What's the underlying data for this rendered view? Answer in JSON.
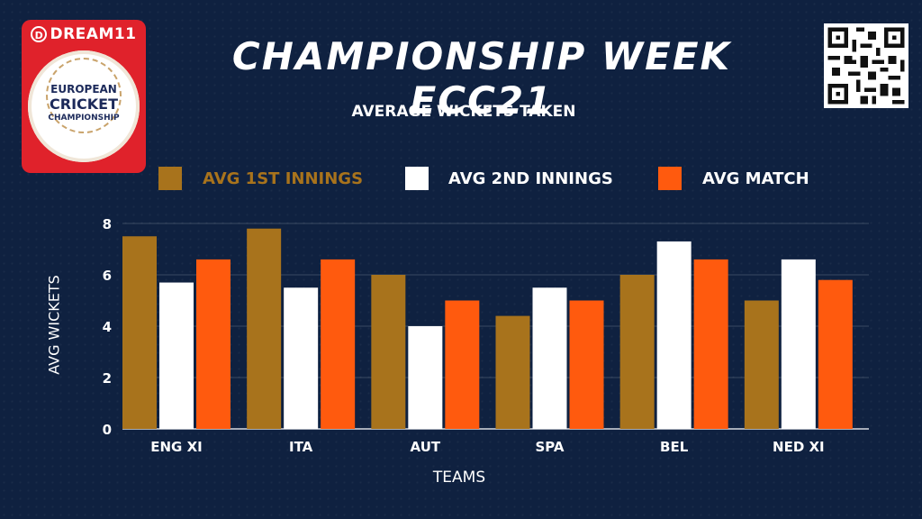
{
  "logo": {
    "brand": "DREAM11",
    "brand_icon": "D",
    "line1": "EUROPEAN",
    "line2": "CRICKET",
    "line3": "CHAMPIONSHIP"
  },
  "header": {
    "title": "CHAMPIONSHIP WEEK ECC21"
  },
  "qr": {
    "icon": "qr-code-icon"
  },
  "colors": {
    "series1": "#a8731c",
    "series2": "#ffffff",
    "series3": "#ff5a0e",
    "background": "#0f2140"
  },
  "chart_data": {
    "type": "bar",
    "title": "AVERAGE WICKETS TAKEN",
    "xlabel": "TEAMS",
    "ylabel": "AVG WICKETS",
    "categories": [
      "ENG XI",
      "ITA",
      "AUT",
      "SPA",
      "BEL",
      "NED XI"
    ],
    "series": [
      {
        "name": "AVG 1ST INNINGS",
        "values": [
          7.5,
          7.8,
          6.0,
          4.4,
          6.0,
          5.0
        ]
      },
      {
        "name": "AVG 2ND INNINGS",
        "values": [
          5.7,
          5.5,
          4.0,
          5.5,
          7.3,
          6.6
        ]
      },
      {
        "name": "AVG MATCH",
        "values": [
          6.6,
          6.6,
          5.0,
          5.0,
          6.6,
          5.8
        ]
      }
    ],
    "ylim": [
      0,
      8
    ],
    "yticks": [
      "0",
      "2",
      "4",
      "6",
      "8"
    ],
    "grid": true,
    "legend": "top"
  }
}
